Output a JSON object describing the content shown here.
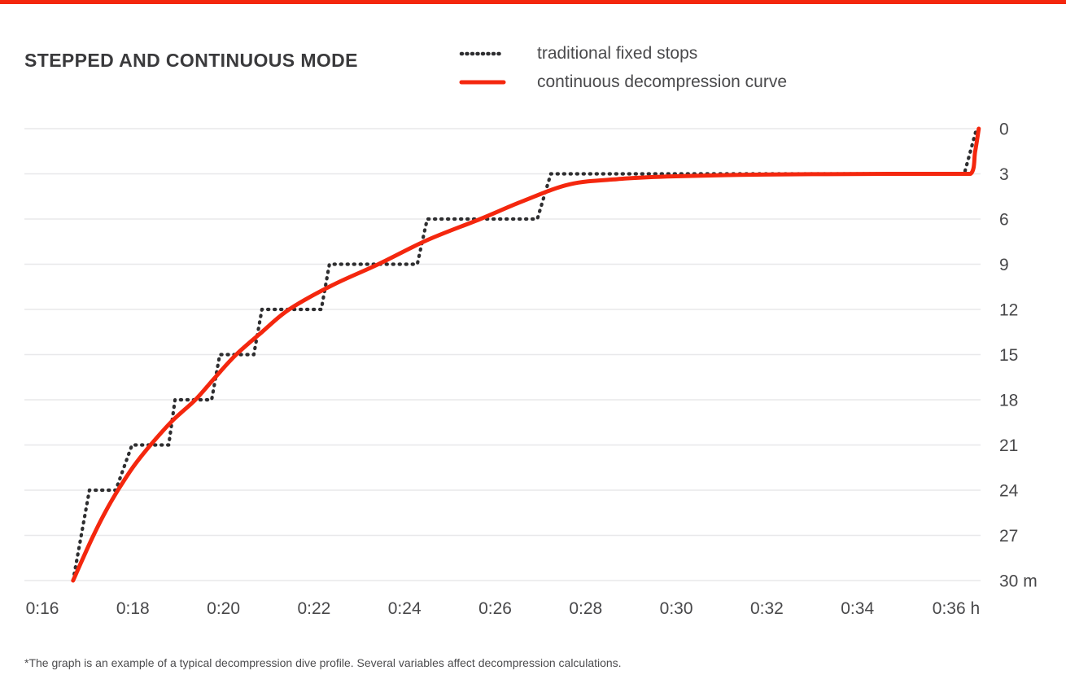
{
  "colors": {
    "accent": "#f4270e",
    "dotted_series": "#2e2e30",
    "grid": "#e8e8ea"
  },
  "header": {
    "title": "STEPPED AND CONTINUOUS MODE"
  },
  "legend": {
    "items": [
      {
        "label": "traditional fixed stops",
        "style": "dotted",
        "color": "#2e2e30"
      },
      {
        "label": "continuous decompression curve",
        "style": "solid",
        "color": "#f4270e"
      }
    ]
  },
  "footnote": "*The graph is an example of a typical decompression dive profile. Several variables affect decompression calculations.",
  "chart_data": {
    "type": "line",
    "title": "STEPPED AND CONTINUOUS MODE",
    "grid": true,
    "legend_position": "top",
    "x_unit": "h",
    "y_unit": "m",
    "xlim": [
      15.6,
      36.8
    ],
    "ylim": [
      0,
      30
    ],
    "y_inverted": true,
    "x_ticks": [
      {
        "t": 16,
        "label": "0:16"
      },
      {
        "t": 18,
        "label": "0:18"
      },
      {
        "t": 20,
        "label": "0:20"
      },
      {
        "t": 22,
        "label": "0:22"
      },
      {
        "t": 24,
        "label": "0:24"
      },
      {
        "t": 26,
        "label": "0:26"
      },
      {
        "t": 28,
        "label": "0:28"
      },
      {
        "t": 30,
        "label": "0:30"
      },
      {
        "t": 32,
        "label": "0:32"
      },
      {
        "t": 34,
        "label": "0:34"
      },
      {
        "t": 36,
        "label": "0:36 h"
      }
    ],
    "y_ticks": [
      {
        "d": 0,
        "label": "0"
      },
      {
        "d": 3,
        "label": "3"
      },
      {
        "d": 6,
        "label": "6"
      },
      {
        "d": 9,
        "label": "9"
      },
      {
        "d": 12,
        "label": "12"
      },
      {
        "d": 15,
        "label": "15"
      },
      {
        "d": 18,
        "label": "18"
      },
      {
        "d": 21,
        "label": "21"
      },
      {
        "d": 24,
        "label": "24"
      },
      {
        "d": 27,
        "label": "27"
      },
      {
        "d": 30,
        "label": "30 m"
      }
    ],
    "series": [
      {
        "name": "traditional fixed stops",
        "mode": "stepped",
        "line": "dotted",
        "color": "#2e2e30",
        "points": [
          [
            16.68,
            30
          ],
          [
            17.04,
            24
          ],
          [
            17.62,
            24
          ],
          [
            17.98,
            21
          ],
          [
            18.79,
            21
          ],
          [
            18.93,
            18
          ],
          [
            19.74,
            18
          ],
          [
            19.92,
            15
          ],
          [
            20.67,
            15
          ],
          [
            20.85,
            12
          ],
          [
            22.16,
            12
          ],
          [
            22.34,
            9
          ],
          [
            24.28,
            9
          ],
          [
            24.5,
            6
          ],
          [
            26.93,
            6
          ],
          [
            27.23,
            3
          ],
          [
            36.36,
            3
          ],
          [
            36.63,
            0
          ]
        ]
      },
      {
        "name": "continuous decompression curve",
        "mode": "smooth",
        "line": "solid",
        "color": "#f4270e",
        "points": [
          [
            16.68,
            30
          ],
          [
            16.9,
            28.5
          ],
          [
            17.13,
            27
          ],
          [
            17.4,
            25.4
          ],
          [
            17.67,
            24
          ],
          [
            18.02,
            22.4
          ],
          [
            18.39,
            21
          ],
          [
            18.87,
            19.4
          ],
          [
            19.38,
            18
          ],
          [
            19.82,
            16.5
          ],
          [
            20.28,
            15
          ],
          [
            20.85,
            13.5
          ],
          [
            21.45,
            12
          ],
          [
            22.4,
            10.4
          ],
          [
            23.42,
            9
          ],
          [
            24.5,
            7.4
          ],
          [
            25.67,
            6
          ],
          [
            26.62,
            4.8
          ],
          [
            27.64,
            3.7
          ],
          [
            28.7,
            3.35
          ],
          [
            29.8,
            3.18
          ],
          [
            31.4,
            3.07
          ],
          [
            33.0,
            3.02
          ],
          [
            34.7,
            3.0
          ],
          [
            36.5,
            3.0
          ],
          [
            36.6,
            1.5
          ],
          [
            36.68,
            0
          ]
        ]
      }
    ]
  }
}
